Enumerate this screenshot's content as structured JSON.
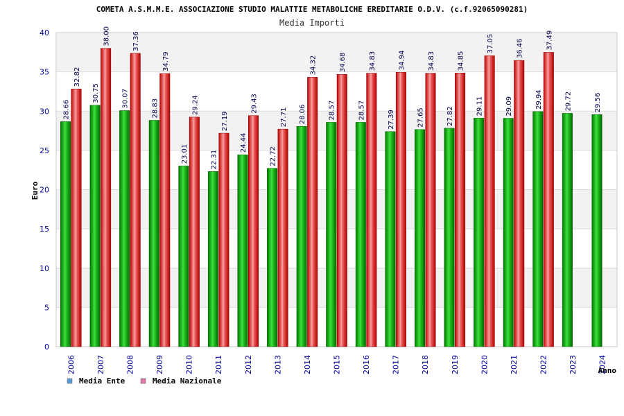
{
  "chart_data": {
    "type": "bar",
    "title": "COMETA A.S.M.M.E. ASSOCIAZIONE STUDIO MALATTIE METABOLICHE EREDITARIE O.D.V. (c.f.92065090281)",
    "subtitle": "Media Importi",
    "xlabel": "Anno",
    "ylabel": "Euro",
    "ylim": [
      0,
      40
    ],
    "yticks": [
      0,
      5,
      10,
      15,
      20,
      25,
      30,
      35,
      40
    ],
    "categories": [
      "2006",
      "2007",
      "2008",
      "2009",
      "2010",
      "2011",
      "2012",
      "2013",
      "2014",
      "2015",
      "2016",
      "2017",
      "2018",
      "2019",
      "2020",
      "2021",
      "2022",
      "2023",
      "2024"
    ],
    "series": [
      {
        "name": "Media Ente",
        "color": "#00b000",
        "legend_color": "#5b9bd5",
        "values": [
          28.66,
          30.75,
          30.07,
          28.83,
          23.01,
          22.31,
          24.44,
          22.72,
          28.06,
          28.57,
          28.57,
          27.39,
          27.65,
          27.82,
          29.11,
          29.09,
          29.94,
          29.72,
          29.56
        ],
        "labels": [
          "28.66",
          "30.75",
          "30.07",
          "28.83",
          "23.01",
          "22.31",
          "24.44",
          "22.72",
          "28.06",
          "28.57",
          "28.57",
          "27.39",
          "27.65",
          "27.82",
          "29.11",
          "29.09",
          "29.94",
          "29.72",
          "29.56"
        ]
      },
      {
        "name": "Media Nazionale",
        "color": "#e00000",
        "legend_color": "#e07aa8",
        "values": [
          32.82,
          38.0,
          37.36,
          34.79,
          29.24,
          27.19,
          29.43,
          27.71,
          34.32,
          34.68,
          34.83,
          34.94,
          34.83,
          34.85,
          37.05,
          36.46,
          37.49,
          null,
          null
        ],
        "labels": [
          "32.82",
          "38.00",
          "37.36",
          "34.79",
          "29.24",
          "27.19",
          "29.43",
          "27.71",
          "34.32",
          "34.68",
          "34.83",
          "34.94",
          "34.83",
          "34.85",
          "37.05",
          "36.46",
          "37.49",
          "",
          ""
        ]
      }
    ]
  }
}
